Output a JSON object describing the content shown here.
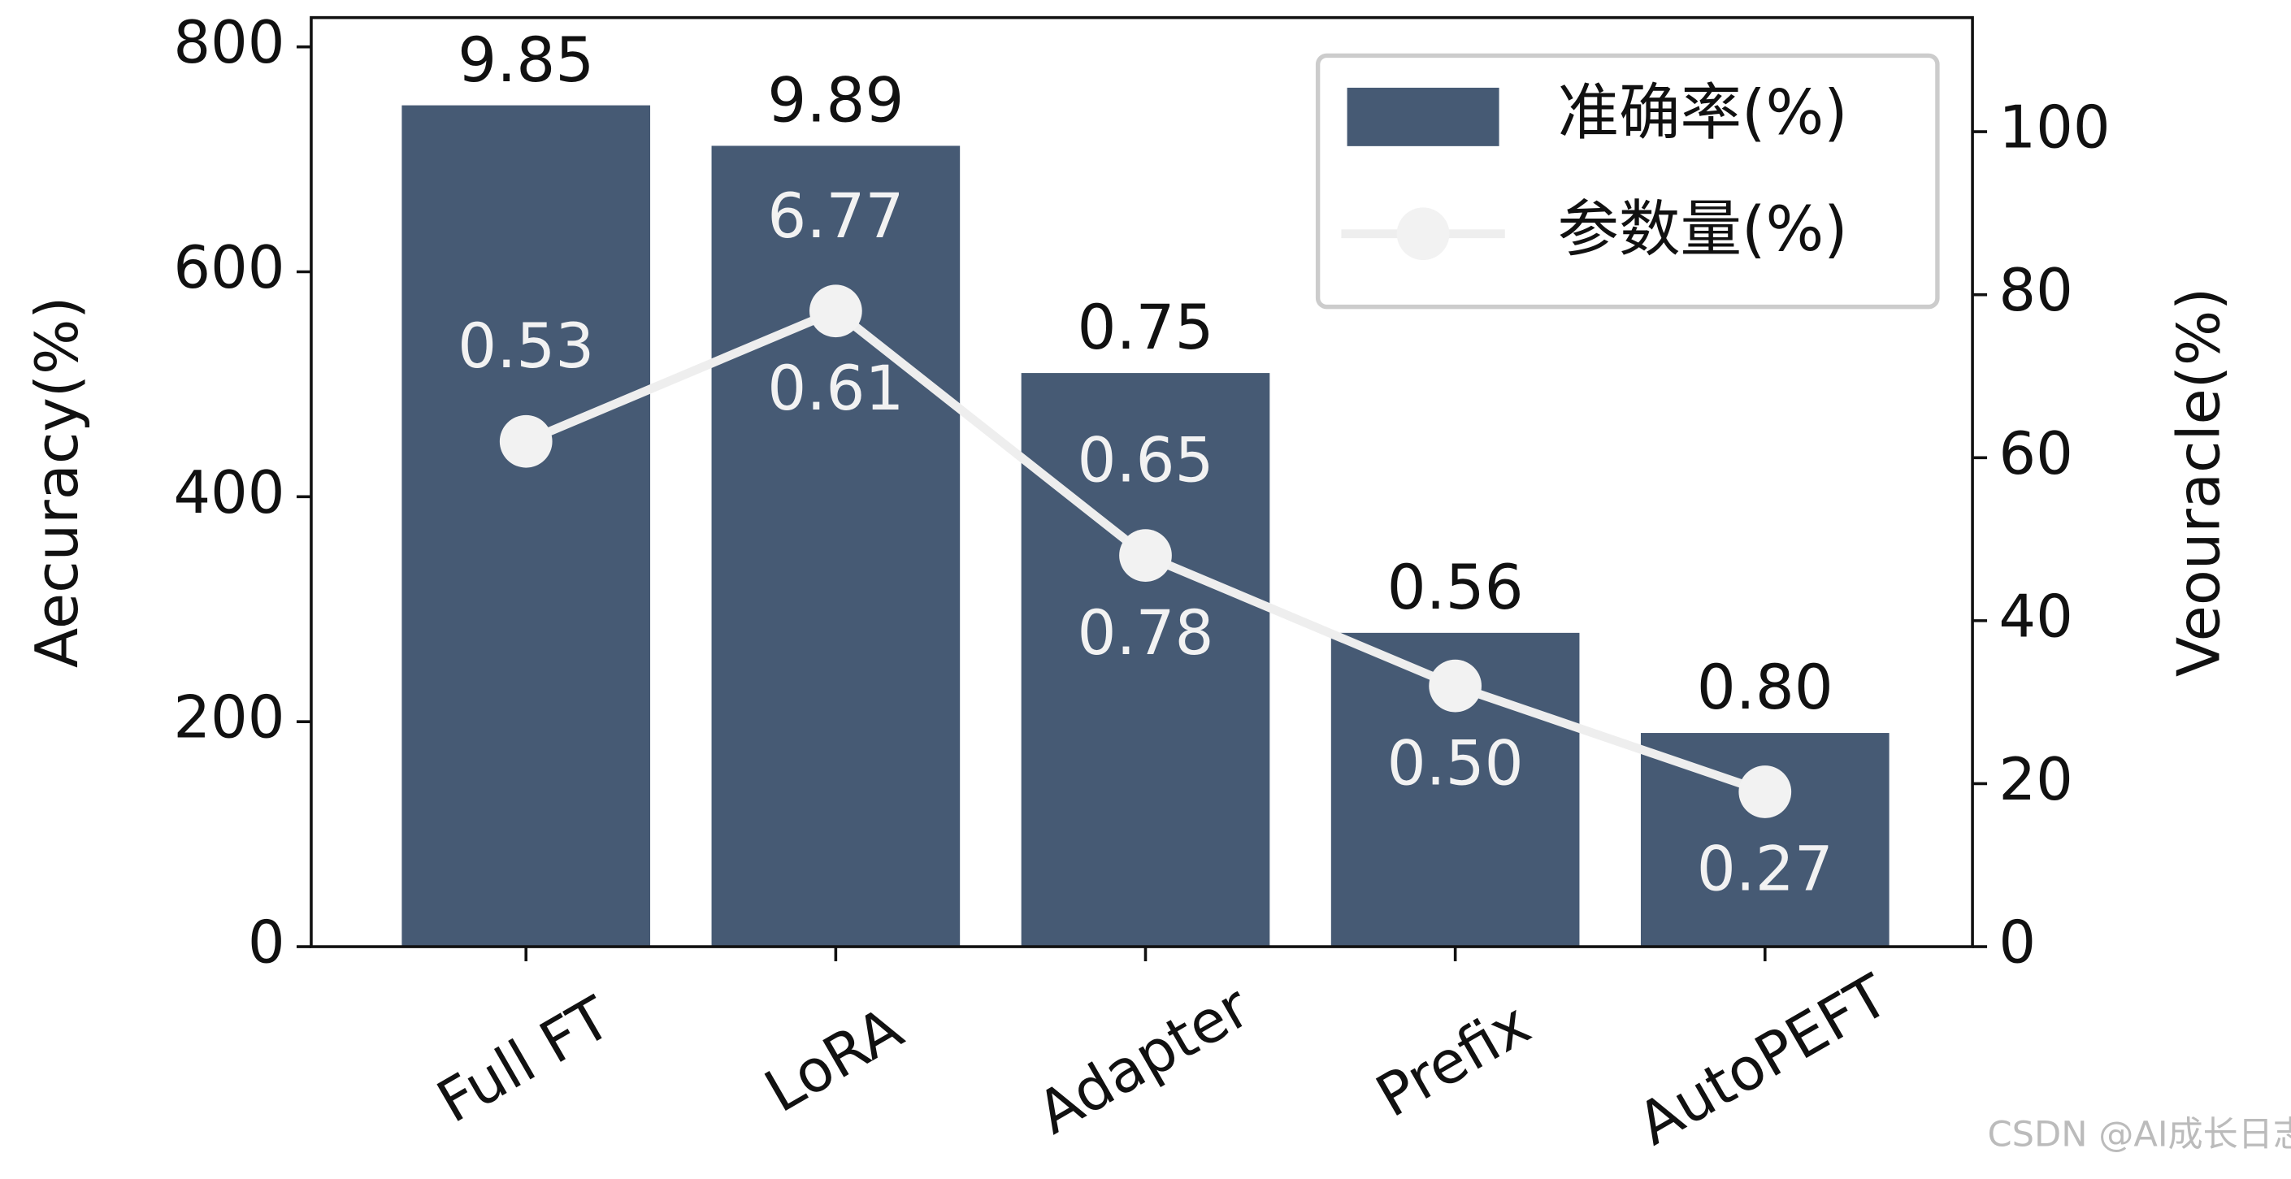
{
  "chart_data": {
    "type": "bar-line",
    "categories": [
      "Full FT",
      "LoRA",
      "Adapter",
      "Prefix",
      "AutoPEFT"
    ],
    "series": [
      {
        "name": "准确率(%)",
        "type": "bar",
        "color": "#465a74",
        "values": [
          748,
          712,
          510,
          279,
          190
        ]
      },
      {
        "name": "参数量(%)",
        "type": "line",
        "axis": "y2",
        "color": "#eeeeee",
        "values": [
          62,
          78,
          48,
          32,
          19
        ]
      }
    ],
    "bar_top_labels": [
      "9.85",
      "9.89",
      "0.75",
      "0.56",
      "0.80"
    ],
    "point_labels_above": [
      "0.53",
      "6.77",
      "0.65",
      null,
      null
    ],
    "point_labels_below": [
      null,
      "0.61",
      "0.78",
      "0.50",
      "0.27"
    ],
    "ylabel": "Aecuracy(%)",
    "y2label": "Veouracle(%)",
    "ylim": [
      0,
      826
    ],
    "yticks": [
      0,
      200,
      400,
      600,
      800
    ],
    "y2lim": [
      0,
      114
    ],
    "y2ticks": [
      0,
      20,
      40,
      60,
      80,
      100
    ],
    "legend": "upper right",
    "watermark": "CSDN @AI成长日志"
  }
}
